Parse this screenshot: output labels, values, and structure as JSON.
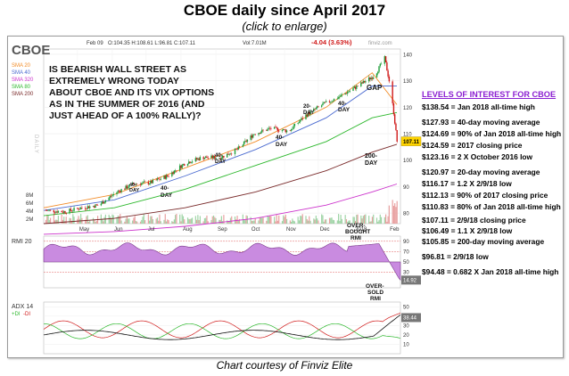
{
  "title": "CBOE daily since April 2017",
  "subtitle": "(click to enlarge)",
  "caption": "Chart courtesy of Finviz Elite",
  "header": {
    "ticker": "CBOE",
    "date": "Feb 09",
    "ohlc": "O:104.35  H:108.61  L:96.81  C:107.11",
    "volume": "Vol:7.01M",
    "change": "-4.04 (3.63%)",
    "watermark": "finviz.com"
  },
  "sma_legend": [
    {
      "label": "SMA 20",
      "color": "#f28c28"
    },
    {
      "label": "SMA 40",
      "color": "#4a6ad0"
    },
    {
      "label": "SMA 320",
      "color": "#cc33cc"
    },
    {
      "label": "SMA 80",
      "color": "#2db82d"
    },
    {
      "label": "SMA 200",
      "color": "#7a2b2b"
    }
  ],
  "daily_label": "DAILY",
  "headline": [
    "IS BEARISH WALL STREET AS",
    "EXTREMELY WRONG TODAY",
    "ABOUT CBOE AND ITS VIX OPTIONS",
    "AS IN THE SUMMER OF 2016 (AND",
    "JUST AHEAD OF A 100% RALLY)?"
  ],
  "annotations": {
    "gap": "GAP",
    "overbought": [
      "OVER-",
      "BOUGHT",
      "RMI"
    ],
    "oversold": [
      "OVER-",
      "SOLD",
      "RMI"
    ],
    "day20": [
      "20-",
      "DAY"
    ],
    "day40": [
      "40-",
      "DAY"
    ],
    "day200": [
      "200-",
      "DAY"
    ]
  },
  "levels_title": "LEVELS OF INTEREST FOR CBOE",
  "levels": [
    "$138.54 = Jan 2018 all-time high",
    "$127.93 = 40-day moving average",
    "$124.69 = 90% of Jan 2018 all-time high",
    "$124.59 = 2017 closing price",
    "$123.16 = 2 X October 2016 low",
    "$120.97 = 20-day moving average",
    "$116.17 = 1.2 X 2/9/18 low",
    "$112.13 = 90% of 2017 closing price",
    "$110.83 = 80% of Jan 2018 all-time high",
    "$107.11 = 2/9/18 closing price",
    "$106.49 = 1.1 X 2/9/18 low",
    "$105.85 = 200-day moving average",
    "$96.81 = 2/9/18 low",
    "$94.48 = 0.682 X Jan 2018 all-time high"
  ],
  "rmi_label": "RMI 20",
  "adx_label": "ADX 14",
  "adx_legend": [
    "+DI",
    "-DI"
  ],
  "chart_data": {
    "type": "candlestick",
    "price_axis_ticks": [
      80,
      90,
      100,
      110,
      120,
      130,
      140
    ],
    "volume_axis_ticks": [
      "2M",
      "4M",
      "6M",
      "8M"
    ],
    "x_tick_labels": [
      "May",
      "Jun",
      "Jul",
      "Aug",
      "Sep",
      "Oct",
      "Nov",
      "Dec",
      "2018",
      "Feb"
    ],
    "close_badge": "107.11",
    "rmi_ticks": [
      30,
      50,
      70,
      90
    ],
    "rmi_value": "14.92",
    "adx_ticks": [
      10,
      20,
      30,
      40,
      50
    ],
    "adx_value": "38.44",
    "price_path": [
      [
        "2017-04-03",
        81
      ],
      [
        "2017-04-20",
        80.5
      ],
      [
        "2017-05-05",
        82
      ],
      [
        "2017-05-20",
        83
      ],
      [
        "2017-06-05",
        88
      ],
      [
        "2017-06-20",
        91
      ],
      [
        "2017-07-05",
        91.5
      ],
      [
        "2017-07-20",
        94
      ],
      [
        "2017-08-05",
        99
      ],
      [
        "2017-08-20",
        101
      ],
      [
        "2017-09-05",
        101
      ],
      [
        "2017-09-20",
        104
      ],
      [
        "2017-10-05",
        110
      ],
      [
        "2017-10-20",
        112
      ],
      [
        "2017-11-05",
        111
      ],
      [
        "2017-11-20",
        117
      ],
      [
        "2017-12-05",
        121
      ],
      [
        "2017-12-20",
        124
      ],
      [
        "2018-01-05",
        128
      ],
      [
        "2018-01-20",
        132
      ],
      [
        "2018-01-29",
        138.5
      ],
      [
        "2018-02-02",
        130
      ],
      [
        "2018-02-06",
        118
      ],
      [
        "2018-02-09",
        107.11
      ]
    ],
    "sma20": [
      [
        0,
        82
      ],
      [
        0.2,
        87
      ],
      [
        0.4,
        97
      ],
      [
        0.6,
        107
      ],
      [
        0.8,
        120
      ],
      [
        0.93,
        133
      ],
      [
        1.0,
        121
      ]
    ],
    "sma40": [
      [
        0,
        81
      ],
      [
        0.2,
        85
      ],
      [
        0.4,
        94
      ],
      [
        0.6,
        104
      ],
      [
        0.8,
        116
      ],
      [
        0.93,
        128
      ],
      [
        1.0,
        128
      ]
    ],
    "sma80": [
      [
        0,
        79
      ],
      [
        0.2,
        82
      ],
      [
        0.4,
        89
      ],
      [
        0.6,
        98
      ],
      [
        0.8,
        107
      ],
      [
        0.93,
        116
      ],
      [
        1.0,
        118
      ]
    ],
    "sma200": [
      [
        0,
        76
      ],
      [
        0.2,
        78
      ],
      [
        0.4,
        82
      ],
      [
        0.6,
        88
      ],
      [
        0.8,
        96
      ],
      [
        0.93,
        103
      ],
      [
        1.0,
        106
      ]
    ],
    "sma320": [
      [
        0,
        72
      ],
      [
        0.2,
        73
      ],
      [
        0.4,
        75
      ],
      [
        0.6,
        78
      ],
      [
        0.8,
        83
      ],
      [
        0.93,
        88
      ],
      [
        1.0,
        91
      ]
    ]
  }
}
